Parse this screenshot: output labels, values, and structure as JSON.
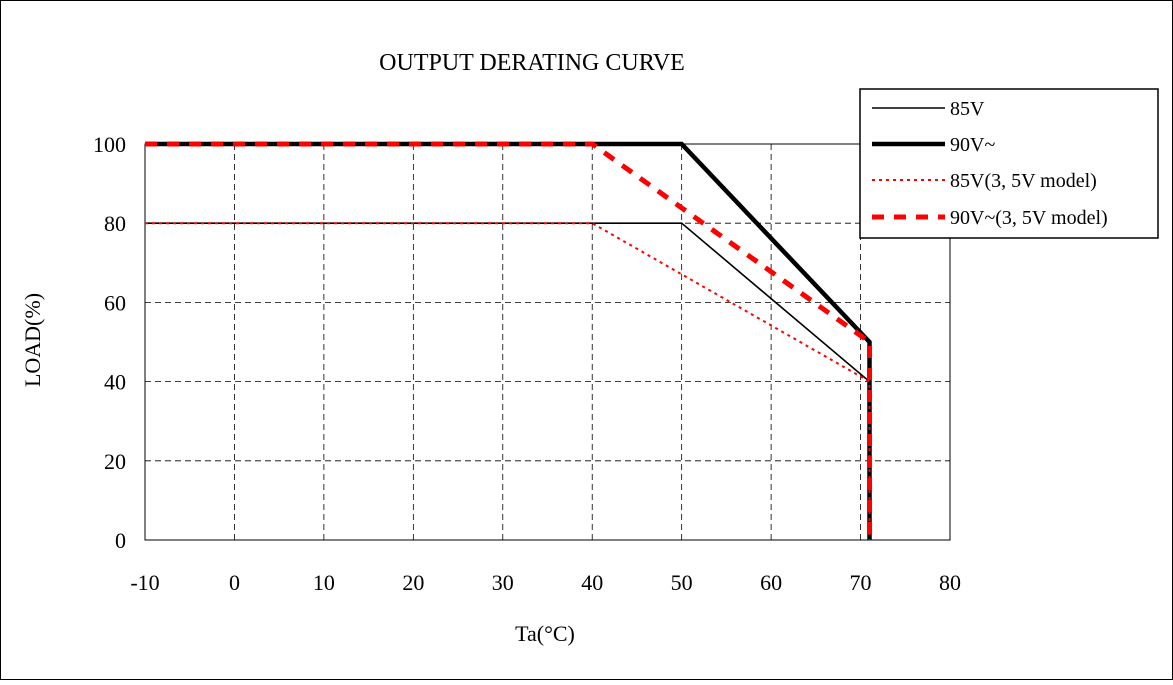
{
  "chart_data": {
    "type": "line",
    "title": "OUTPUT DERATING CURVE",
    "xlabel": "Ta(°C)",
    "ylabel": "LOAD(%)",
    "xlim": [
      -10,
      80
    ],
    "ylim": [
      0,
      100
    ],
    "x_ticks": [
      -10,
      0,
      10,
      20,
      30,
      40,
      50,
      60,
      70,
      80
    ],
    "y_ticks": [
      0,
      20,
      40,
      60,
      80,
      100
    ],
    "x_tick_labels": [
      "-10",
      "0",
      "10",
      "20",
      "30",
      "40",
      "50",
      "60",
      "70",
      "80"
    ],
    "y_tick_labels": [
      "0",
      "20",
      "40",
      "60",
      "80",
      "100"
    ],
    "grid": true,
    "legend_position": "top-right",
    "series": [
      {
        "name": "85V",
        "color": "#000000",
        "style": "solid-thin",
        "points": [
          [
            -10,
            80
          ],
          [
            50,
            80
          ],
          [
            71,
            40
          ],
          [
            71,
            0
          ]
        ]
      },
      {
        "name": "90V~",
        "color": "#000000",
        "style": "solid-thick",
        "points": [
          [
            -10,
            100
          ],
          [
            50,
            100
          ],
          [
            71,
            50
          ],
          [
            71,
            0
          ]
        ]
      },
      {
        "name": "85V(3, 5V model)",
        "color": "#ff0000",
        "style": "dotted-thin",
        "points": [
          [
            -10,
            80
          ],
          [
            40,
            80
          ],
          [
            71,
            40
          ],
          [
            71,
            0
          ]
        ]
      },
      {
        "name": "90V~(3, 5V model)",
        "color": "#ff0000",
        "style": "dashed-thick",
        "points": [
          [
            -10,
            100
          ],
          [
            40,
            100
          ],
          [
            71,
            50
          ],
          [
            71,
            0
          ]
        ]
      }
    ]
  }
}
